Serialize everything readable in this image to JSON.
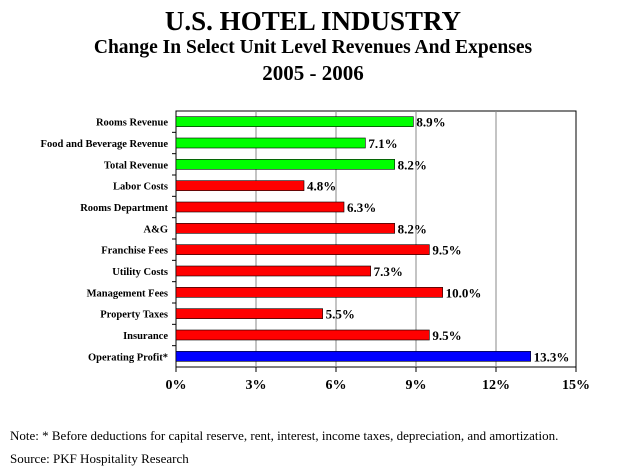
{
  "header": {
    "title": "U.S. HOTEL INDUSTRY",
    "subtitle": "Change In Select Unit Level Revenues And Expenses",
    "years": "2005 - 2006"
  },
  "chart_data": {
    "type": "bar",
    "orientation": "horizontal",
    "categories": [
      "Rooms Revenue",
      "Food and Beverage Revenue",
      "Total Revenue",
      "Labor Costs",
      "Rooms Department",
      "A&G",
      "Franchise Fees",
      "Utility Costs",
      "Management Fees",
      "Property Taxes",
      "Insurance",
      "Operating Profit*"
    ],
    "values": [
      8.9,
      7.1,
      8.2,
      4.8,
      6.3,
      8.2,
      9.5,
      7.3,
      10.0,
      5.5,
      9.5,
      13.3
    ],
    "data_labels": [
      "8.9%",
      "7.1%",
      "8.2%",
      "4.8%",
      "6.3%",
      "8.2%",
      "9.5%",
      "7.3%",
      "10.0%",
      "5.5%",
      "9.5%",
      "13.3%"
    ],
    "bar_colors": [
      "#00ff00",
      "#00ff00",
      "#00ff00",
      "#ff0000",
      "#ff0000",
      "#ff0000",
      "#ff0000",
      "#ff0000",
      "#ff0000",
      "#ff0000",
      "#ff0000",
      "#0000ff"
    ],
    "xlim": [
      0,
      15
    ],
    "xticks": [
      0,
      3,
      6,
      9,
      12,
      15
    ],
    "xtick_labels": [
      "0%",
      "3%",
      "6%",
      "9%",
      "12%",
      "15%"
    ],
    "grid": "vertical",
    "legend": "none"
  },
  "footer": {
    "note": "Note: * Before deductions for capital reserve, rent, interest, income taxes, depreciation, and amortization.",
    "source": "Source: PKF Hospitality Research"
  }
}
